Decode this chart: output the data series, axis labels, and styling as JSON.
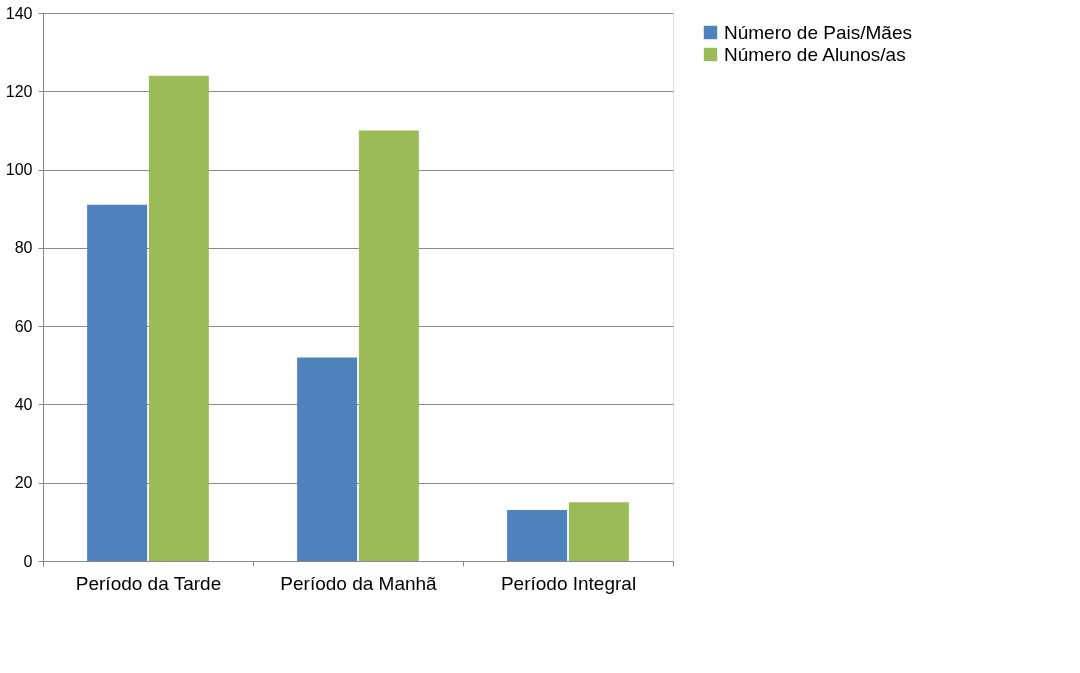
{
  "chart_data": {
    "type": "bar",
    "categories": [
      "Período da Tarde",
      "Período da Manhã",
      "Período Integral"
    ],
    "series": [
      {
        "name": "Número de Pais/Mães",
        "color": "#4f81bd",
        "values": [
          91,
          52,
          13
        ]
      },
      {
        "name": "Número de Alunos/as",
        "color": "#9bbb59",
        "values": [
          124,
          110,
          15
        ]
      }
    ],
    "ylim": [
      0,
      140
    ],
    "yticks": [
      0,
      20,
      40,
      60,
      80,
      100,
      120,
      140
    ],
    "grid": "y",
    "legend": "right"
  }
}
